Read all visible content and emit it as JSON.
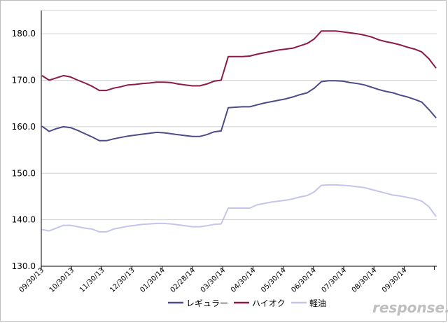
{
  "chart_data": {
    "type": "line",
    "ylim": [
      130,
      185
    ],
    "yticks": [
      "180.0",
      "170.0",
      "160.0",
      "150.0",
      "140.0",
      "130.0"
    ],
    "ytick_values": [
      180,
      170,
      160,
      150,
      140,
      130
    ],
    "xtick_labels": [
      "09/30/13",
      "10/30/13",
      "11/30/13",
      "12/30/13",
      "01/30/14",
      "02/28/14",
      "03/30/14",
      "04/30/14",
      "05/30/14",
      "06/30/14",
      "07/30/14",
      "08/30/14",
      "09/30/14"
    ],
    "grid": "horizontal",
    "legend_placement": "bottom-center",
    "series": [
      {
        "name": "レギュラー",
        "color": "#4b4c88",
        "values": [
          160.1,
          159.0,
          159.6,
          160.0,
          159.8,
          159.2,
          158.5,
          157.8,
          157.0,
          157.0,
          157.4,
          157.7,
          158.0,
          158.2,
          158.4,
          158.6,
          158.8,
          158.7,
          158.5,
          158.3,
          158.1,
          157.9,
          157.9,
          158.3,
          158.9,
          159.1,
          164.1,
          164.2,
          164.3,
          164.3,
          164.7,
          165.1,
          165.4,
          165.7,
          166.0,
          166.4,
          166.9,
          167.3,
          168.3,
          169.7,
          169.9,
          169.9,
          169.8,
          169.5,
          169.3,
          169.0,
          168.5,
          168.0,
          167.6,
          167.3,
          166.8,
          166.4,
          165.9,
          165.3,
          163.7,
          161.9
        ]
      },
      {
        "name": "ハイオク",
        "color": "#8b1a4a",
        "values": [
          171.0,
          170.0,
          170.5,
          171.0,
          170.7,
          170.0,
          169.4,
          168.7,
          167.8,
          167.8,
          168.3,
          168.6,
          169.0,
          169.1,
          169.3,
          169.4,
          169.6,
          169.6,
          169.5,
          169.2,
          169.0,
          168.8,
          168.8,
          169.2,
          169.8,
          170.0,
          175.1,
          175.1,
          175.1,
          175.2,
          175.6,
          175.9,
          176.2,
          176.5,
          176.7,
          176.9,
          177.4,
          177.9,
          178.9,
          180.6,
          180.6,
          180.6,
          180.4,
          180.2,
          180.0,
          179.7,
          179.3,
          178.7,
          178.3,
          178.0,
          177.6,
          177.1,
          176.7,
          176.1,
          174.6,
          172.6
        ]
      },
      {
        "name": "軽油",
        "color": "#c4c4ec",
        "values": [
          137.9,
          137.6,
          138.2,
          138.8,
          138.8,
          138.5,
          138.2,
          138.0,
          137.4,
          137.4,
          138.0,
          138.3,
          138.6,
          138.8,
          139.0,
          139.1,
          139.2,
          139.2,
          139.1,
          138.9,
          138.7,
          138.5,
          138.5,
          138.7,
          139.0,
          139.1,
          142.5,
          142.5,
          142.5,
          142.5,
          143.2,
          143.5,
          143.8,
          144.0,
          144.2,
          144.5,
          144.9,
          145.2,
          146.0,
          147.4,
          147.5,
          147.5,
          147.4,
          147.3,
          147.1,
          146.9,
          146.5,
          146.1,
          145.7,
          145.3,
          145.1,
          144.8,
          144.5,
          144.0,
          142.8,
          140.7
        ]
      }
    ]
  },
  "watermark": {
    "text": "response."
  }
}
